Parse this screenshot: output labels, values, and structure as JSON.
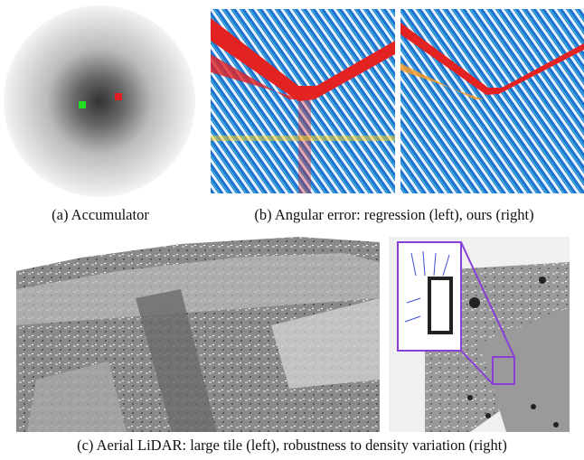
{
  "figure": {
    "captions": {
      "a": "(a) Accumulator",
      "b": "(b) Angular error: regression (left), ours (right)",
      "c": "(c) Aerial LiDAR: large tile (left), robustness to density variation (right)"
    }
  }
}
